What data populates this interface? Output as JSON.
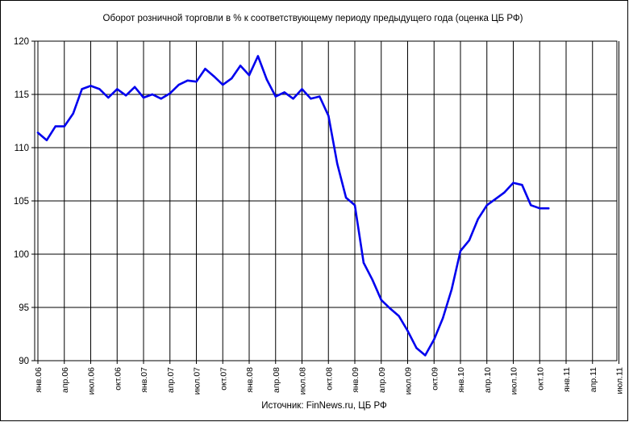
{
  "chart_data": {
    "type": "line",
    "title": "Оборот розничной торговли в % к соответствующему периоду предыдущего года (оценка ЦБ РФ)",
    "source": "Источник: FinNews.ru, ЦБ РФ",
    "xlabel": "",
    "ylabel": "",
    "ylim": [
      90,
      120
    ],
    "yticks": [
      90,
      95,
      100,
      105,
      110,
      115,
      120
    ],
    "grid": true,
    "legend": "none",
    "categories": [
      "янв.06",
      "апр.06",
      "июл.06",
      "окт.06",
      "янв.07",
      "апр.07",
      "июл.07",
      "окт.07",
      "янв.08",
      "апр.08",
      "июл.08",
      "окт.08",
      "янв.09",
      "апр.09",
      "июл.09",
      "окт.09",
      "янв.10",
      "апр.10",
      "июл.10",
      "окт.10",
      "янв.11",
      "апр.11",
      "июл.11"
    ],
    "series": [
      {
        "color": "#0000ee",
        "x": [
          "2006-01",
          "2006-02",
          "2006-03",
          "2006-04",
          "2006-05",
          "2006-06",
          "2006-07",
          "2006-08",
          "2006-09",
          "2006-10",
          "2006-11",
          "2006-12",
          "2007-01",
          "2007-02",
          "2007-03",
          "2007-04",
          "2007-05",
          "2007-06",
          "2007-07",
          "2007-08",
          "2007-09",
          "2007-10",
          "2007-11",
          "2007-12",
          "2008-01",
          "2008-02",
          "2008-03",
          "2008-04",
          "2008-05",
          "2008-06",
          "2008-07",
          "2008-08",
          "2008-09",
          "2008-10",
          "2008-11",
          "2008-12",
          "2009-01",
          "2009-02",
          "2009-03",
          "2009-04",
          "2009-05",
          "2009-06",
          "2009-07",
          "2009-08",
          "2009-09",
          "2009-10",
          "2009-11",
          "2009-12",
          "2010-01",
          "2010-02",
          "2010-03",
          "2010-04",
          "2010-05",
          "2010-06",
          "2010-07",
          "2010-08",
          "2010-09",
          "2010-10",
          "2010-11"
        ],
        "values": [
          111.4,
          110.7,
          112.0,
          112.0,
          113.2,
          115.5,
          115.8,
          115.5,
          114.7,
          115.5,
          114.9,
          115.7,
          114.7,
          115.0,
          114.6,
          115.1,
          115.9,
          116.3,
          116.2,
          117.4,
          116.7,
          115.9,
          116.5,
          117.7,
          116.8,
          118.6,
          116.4,
          114.8,
          115.2,
          114.6,
          115.5,
          114.6,
          114.8,
          113.0,
          108.5,
          105.3,
          104.6,
          99.2,
          97.6,
          95.7,
          94.9,
          94.2,
          92.8,
          91.2,
          90.5,
          92.0,
          94.0,
          96.7,
          100.3,
          101.3,
          103.3,
          104.6,
          105.2,
          105.8,
          106.7,
          106.5,
          104.6,
          104.3,
          104.3
        ]
      }
    ]
  }
}
